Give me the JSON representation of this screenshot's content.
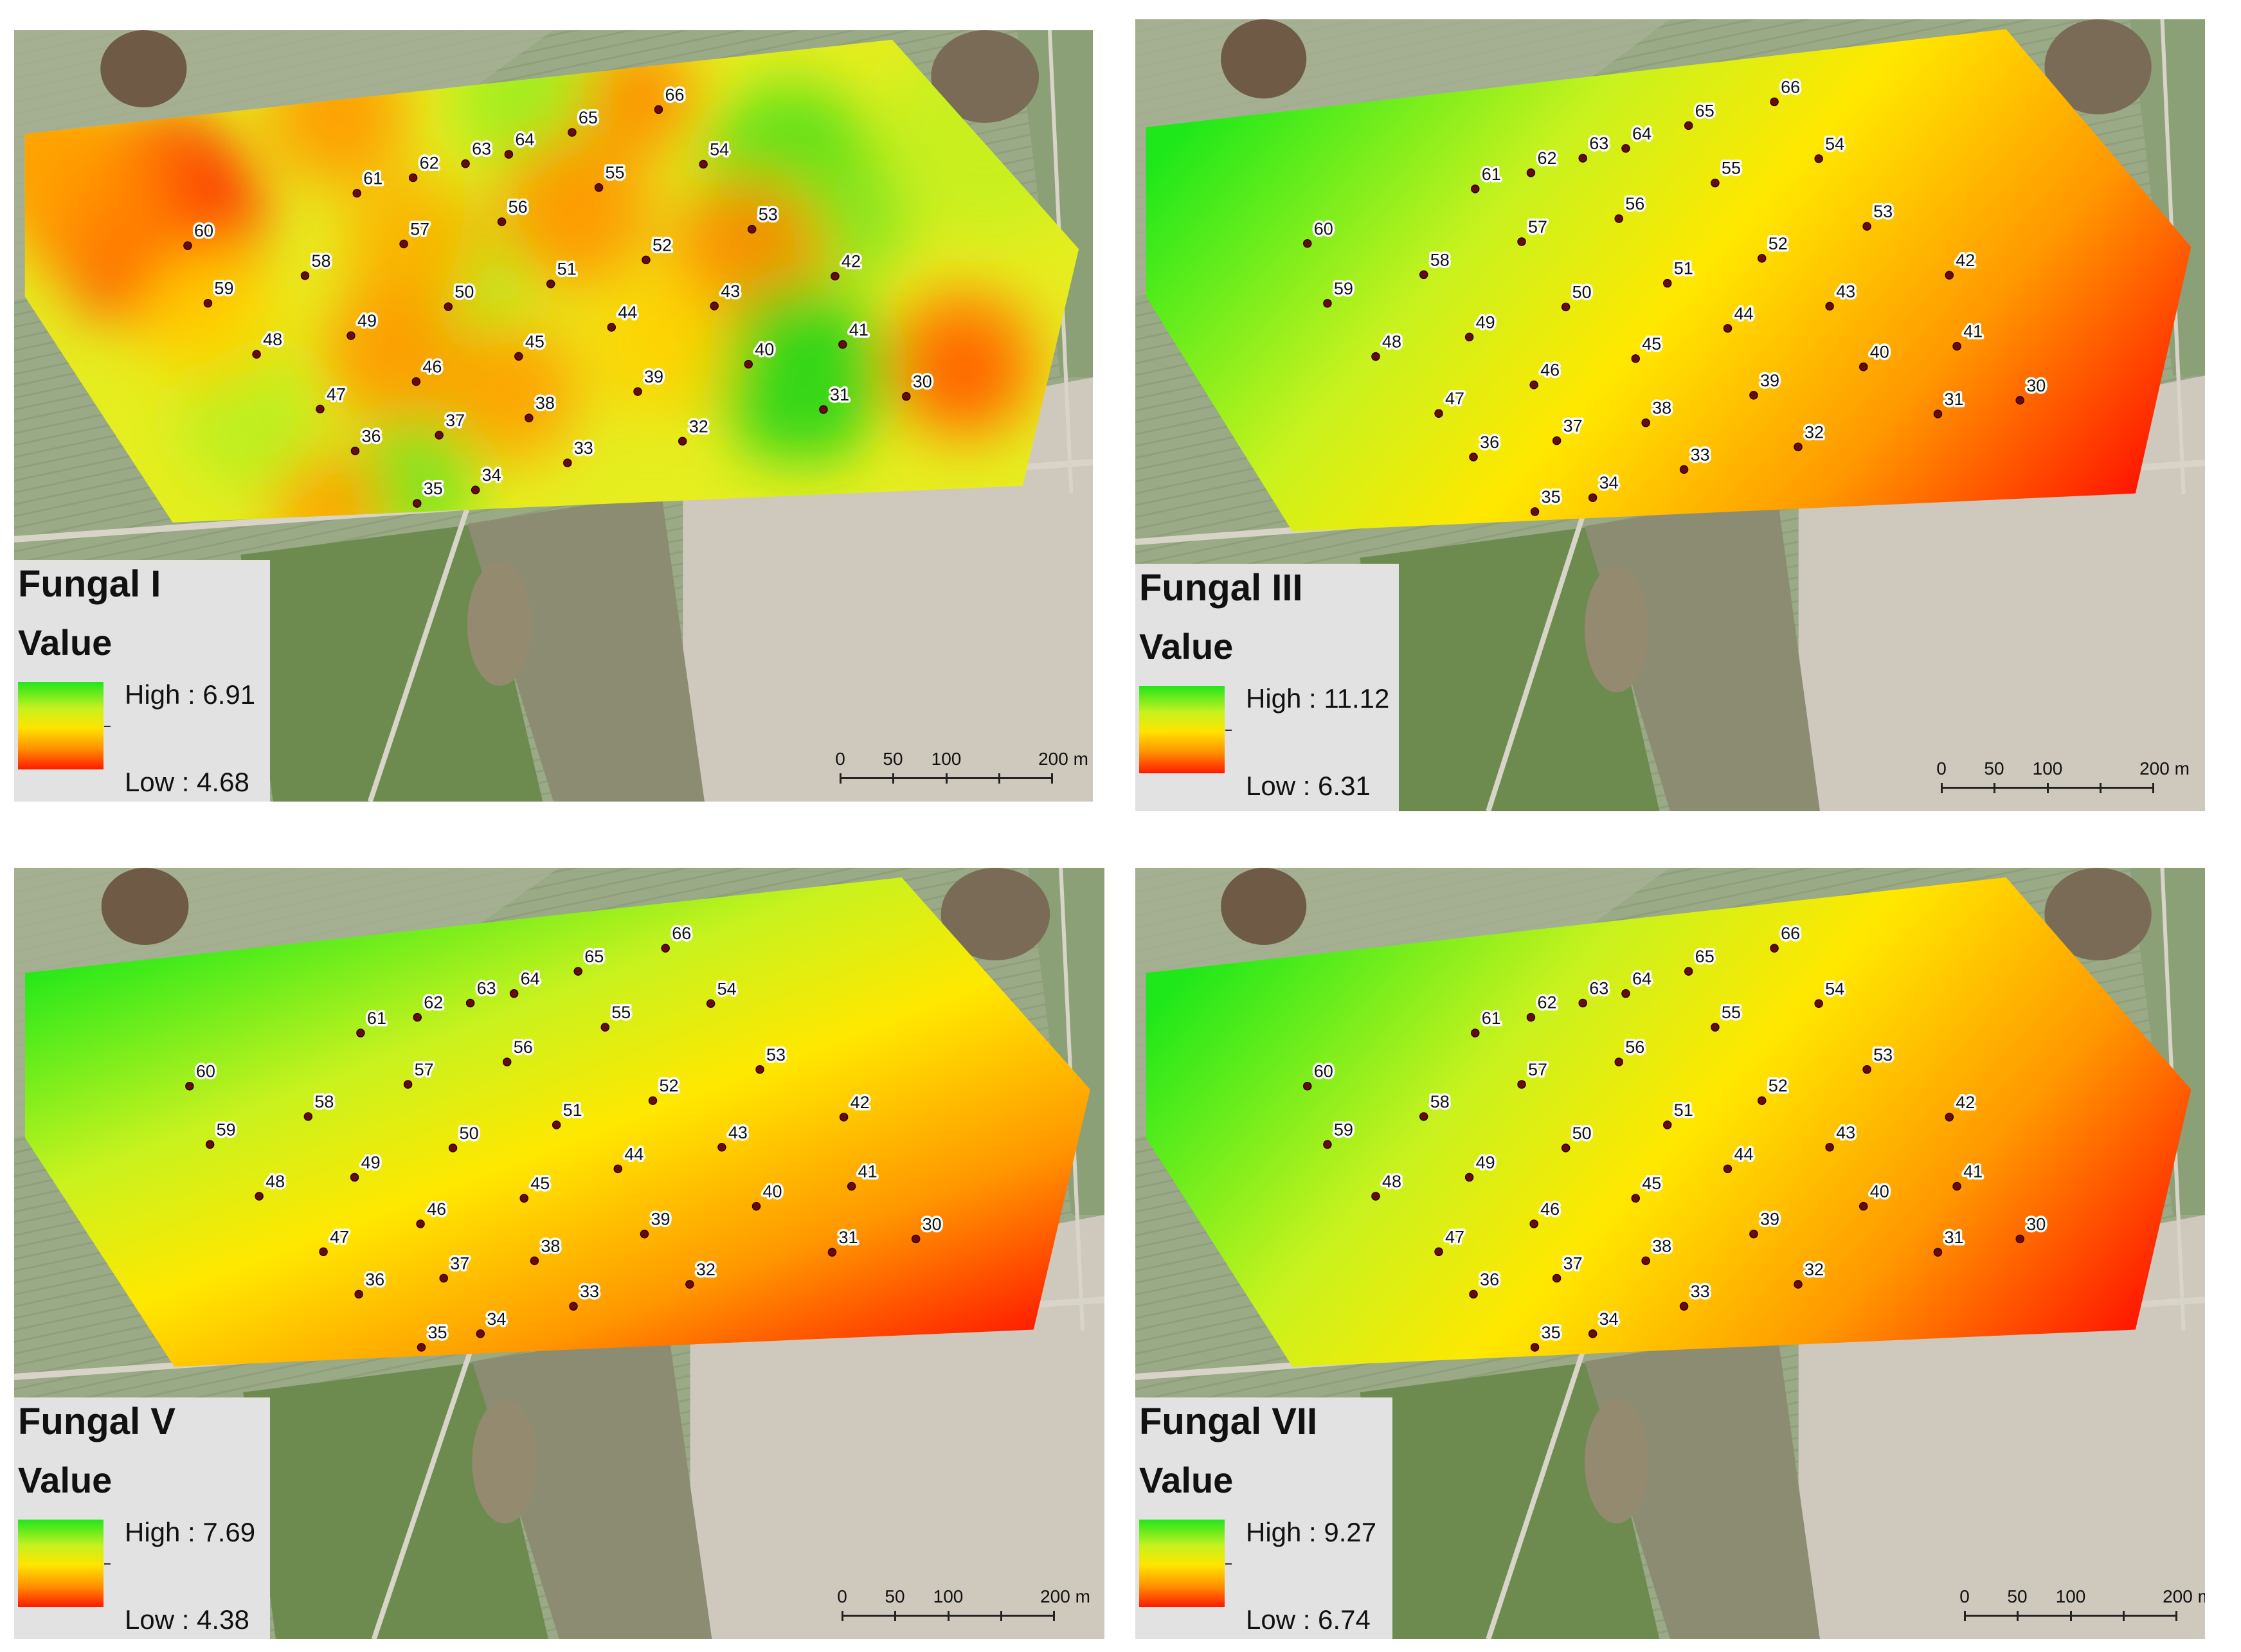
{
  "points": [
    {
      "id": "30",
      "u": 0.896,
      "v": 0.788
    },
    {
      "id": "31",
      "u": 0.796,
      "v": 0.807
    },
    {
      "id": "32",
      "u": 0.622,
      "v": 0.862
    },
    {
      "id": "33",
      "u": 0.481,
      "v": 0.899
    },
    {
      "id": "34",
      "u": 0.364,
      "v": 0.953
    },
    {
      "id": "35",
      "u": 0.291,
      "v": 0.979
    },
    {
      "id": "36",
      "u": 0.241,
      "v": 0.844
    },
    {
      "id": "37",
      "u": 0.344,
      "v": 0.817
    },
    {
      "id": "38",
      "u": 0.454,
      "v": 0.788
    },
    {
      "id": "39",
      "u": 0.589,
      "v": 0.741
    },
    {
      "id": "40",
      "u": 0.726,
      "v": 0.694
    },
    {
      "id": "41",
      "u": 0.841,
      "v": 0.663
    },
    {
      "id": "42",
      "u": 0.856,
      "v": 0.509
    },
    {
      "id": "43",
      "u": 0.708,
      "v": 0.556
    },
    {
      "id": "44",
      "u": 0.583,
      "v": 0.588
    },
    {
      "id": "45",
      "u": 0.466,
      "v": 0.641
    },
    {
      "id": "46",
      "u": 0.339,
      "v": 0.685
    },
    {
      "id": "47",
      "u": 0.218,
      "v": 0.737
    },
    {
      "id": "48",
      "u": 0.168,
      "v": 0.593
    },
    {
      "id": "49",
      "u": 0.283,
      "v": 0.564
    },
    {
      "id": "50",
      "u": 0.405,
      "v": 0.512
    },
    {
      "id": "51",
      "u": 0.53,
      "v": 0.477
    },
    {
      "id": "52",
      "u": 0.647,
      "v": 0.439
    },
    {
      "id": "53",
      "u": 0.778,
      "v": 0.389
    },
    {
      "id": "54",
      "u": 0.746,
      "v": 0.233
    },
    {
      "id": "55",
      "u": 0.62,
      "v": 0.264
    },
    {
      "id": "56",
      "u": 0.498,
      "v": 0.323
    },
    {
      "id": "57",
      "u": 0.379,
      "v": 0.355
    },
    {
      "id": "58",
      "u": 0.255,
      "v": 0.411
    },
    {
      "id": "59",
      "u": 0.134,
      "v": 0.459
    },
    {
      "id": "60",
      "u": 0.135,
      "v": 0.314
    },
    {
      "id": "61",
      "u": 0.346,
      "v": 0.225
    },
    {
      "id": "62",
      "u": 0.415,
      "v": 0.201
    },
    {
      "id": "63",
      "u": 0.479,
      "v": 0.18
    },
    {
      "id": "64",
      "u": 0.531,
      "v": 0.168
    },
    {
      "id": "65",
      "u": 0.61,
      "v": 0.132
    },
    {
      "id": "66",
      "u": 0.715,
      "v": 0.1
    }
  ],
  "scalebar": {
    "ticks": [
      "0",
      "50",
      "100",
      "200 m"
    ]
  },
  "panels": [
    {
      "title": "Fungal I",
      "value_label": "Value",
      "high_label": "High : 6.91",
      "low_label": "Low : 4.68",
      "surface": "interpolated-patchy",
      "colors": {
        "high": "#22e51c",
        "mid": "#ffe400",
        "low": "#ff1a00"
      }
    },
    {
      "title": "Fungal III",
      "value_label": "Value",
      "high_label": "High : 11.12",
      "low_label": "Low : 6.31",
      "surface": "gradient-west-high",
      "colors": {
        "high": "#22e51c",
        "mid": "#ffe400",
        "low": "#ff1a00"
      }
    },
    {
      "title": "Fungal V",
      "value_label": "Value",
      "high_label": "High : 7.69",
      "low_label": "Low : 4.38",
      "surface": "gradient-northwest-high",
      "colors": {
        "high": "#22e51c",
        "mid": "#ffe400",
        "low": "#ff1a00"
      }
    },
    {
      "title": "Fungal VII",
      "value_label": "Value",
      "high_label": "High : 9.27",
      "low_label": "Low : 6.74",
      "surface": "gradient-west-high",
      "colors": {
        "high": "#22e51c",
        "mid": "#ffe400",
        "low": "#ff1a00"
      }
    }
  ]
}
